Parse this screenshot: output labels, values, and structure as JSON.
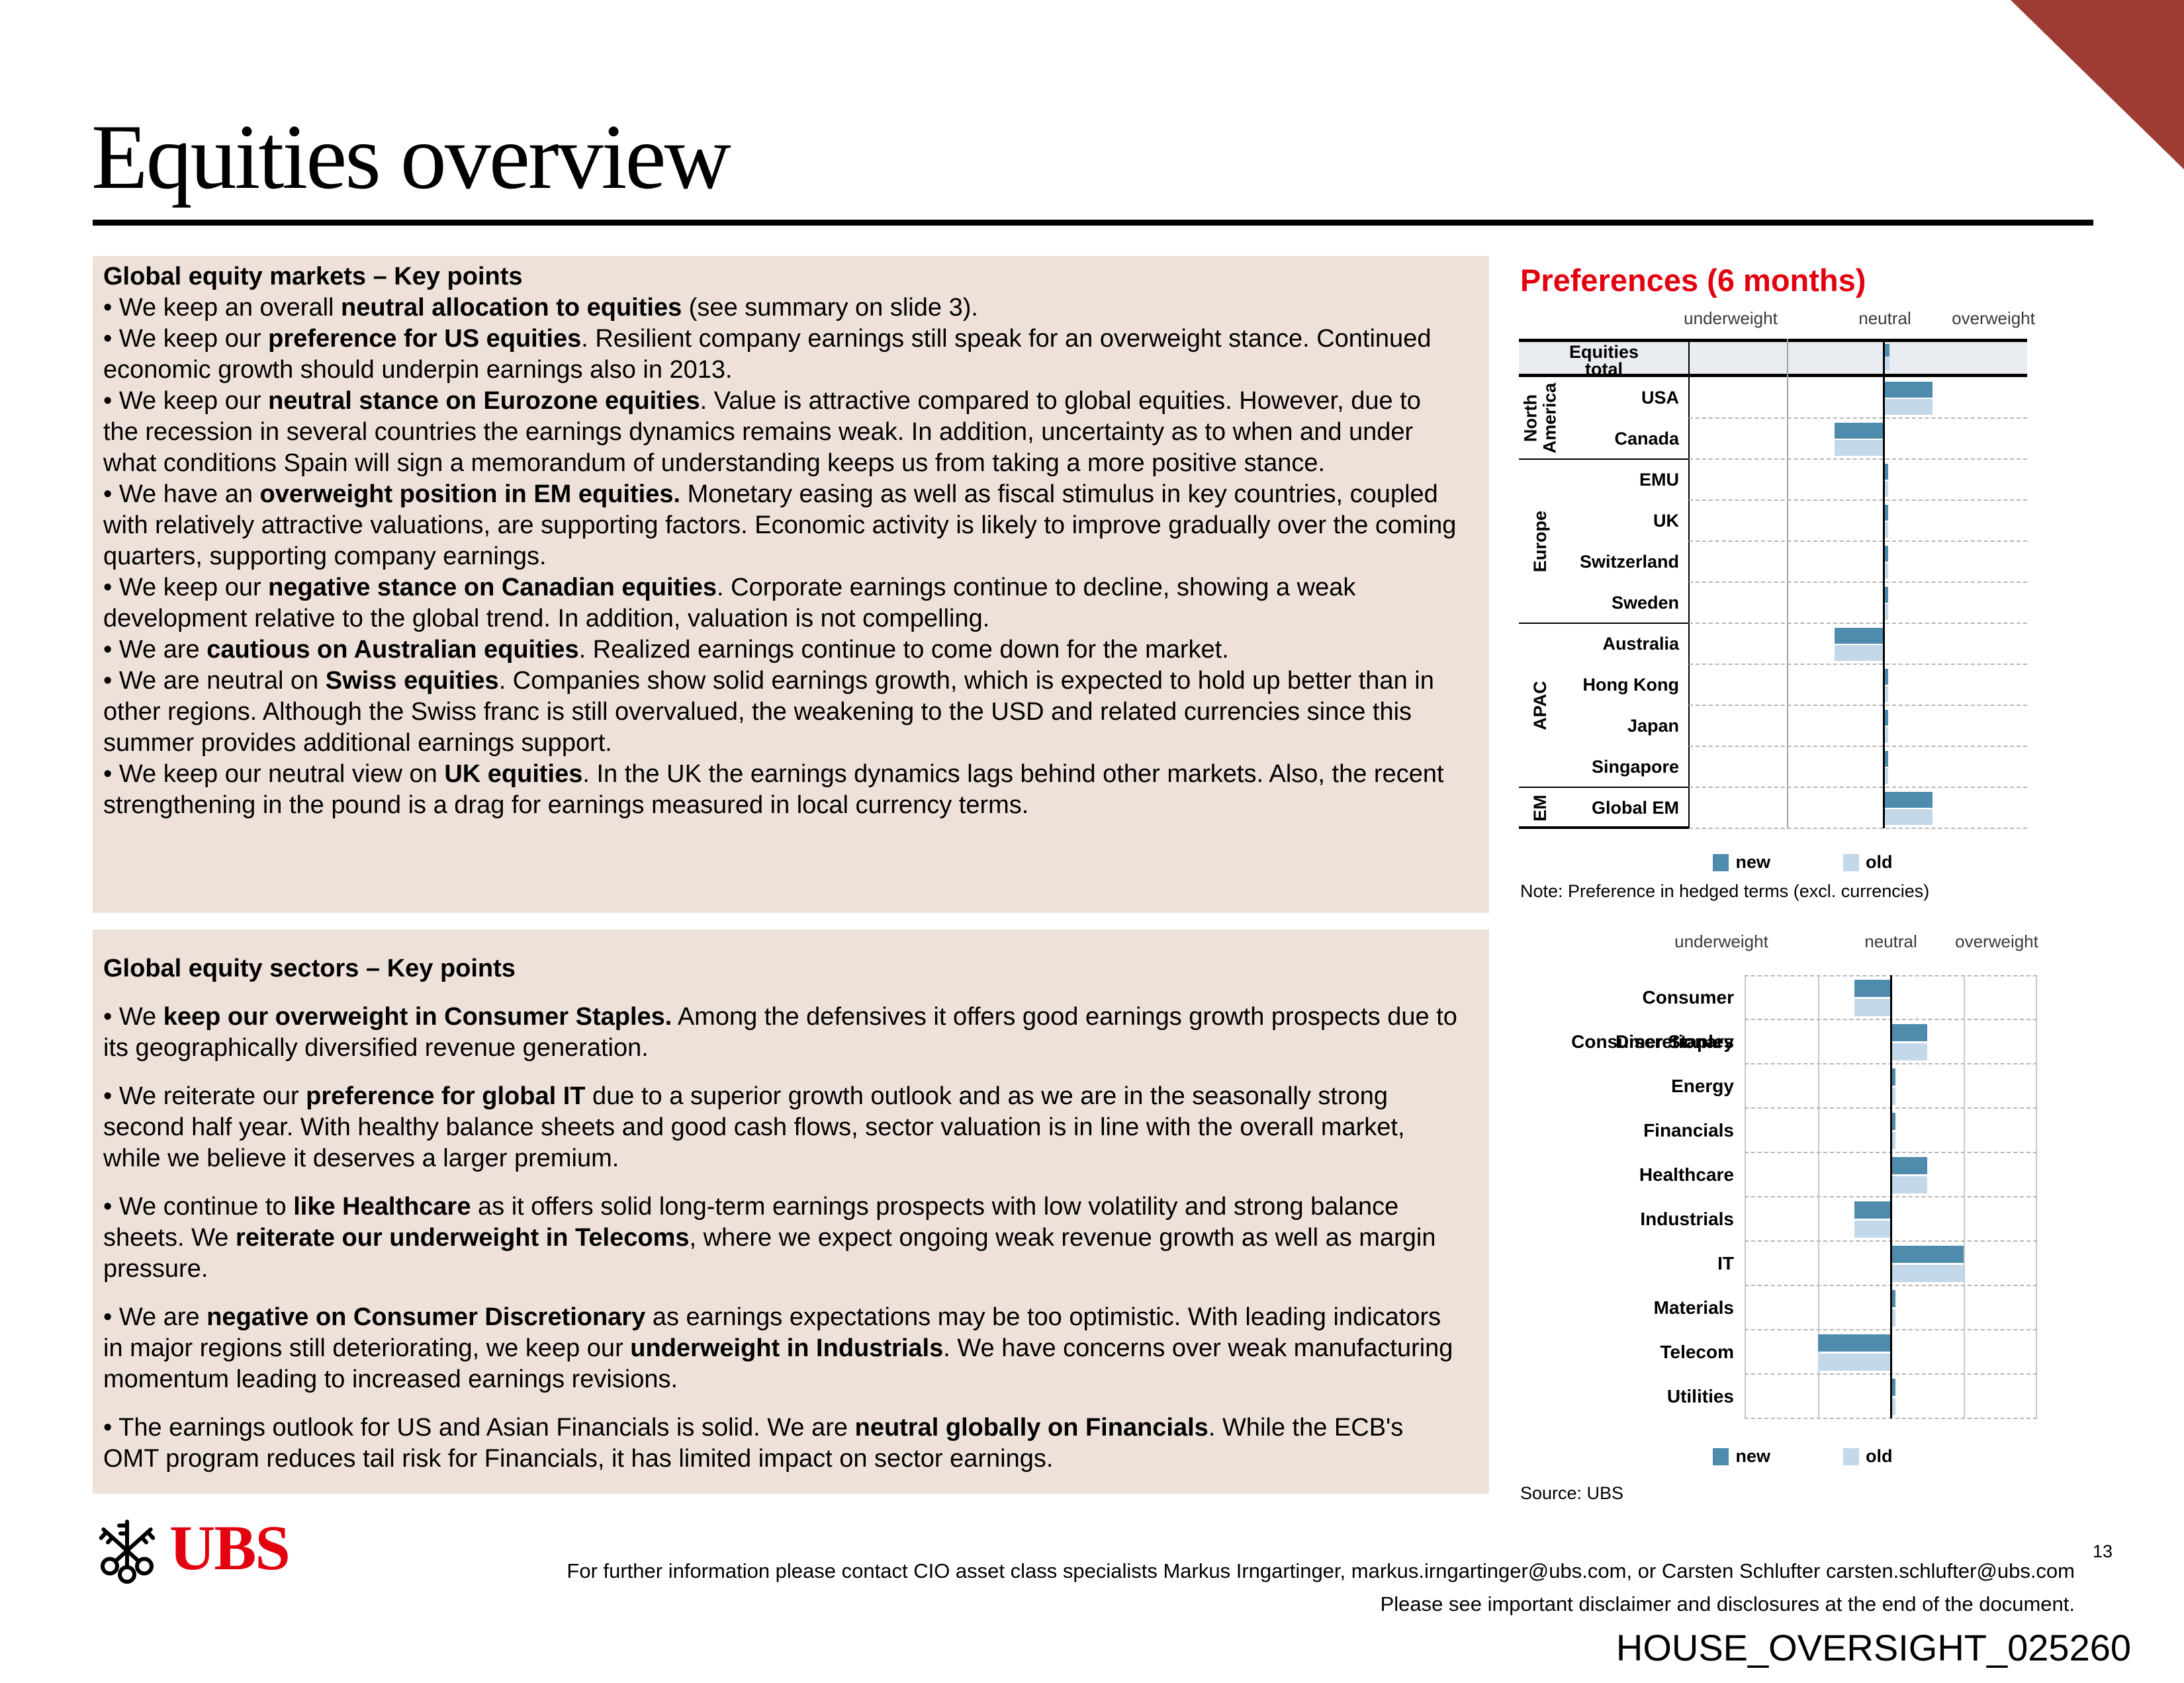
{
  "page": {
    "title": "Equities overview",
    "logo_text": "UBS",
    "footer_line1": "For further information please contact CIO asset class specialists Markus Irngartinger, markus.irngartinger@ubs.com, or Carsten Schlufter carsten.schlufter@ubs.com",
    "footer_line2": "Please see important disclaimer and disclosures at the end of the document.",
    "page_number": "13",
    "watermark": "HOUSE_OVERSIGHT_025260"
  },
  "colors": {
    "accent_red": "#e3000f",
    "corner_red": "#9e3b33",
    "pink_box": "#eee1da",
    "band_grey": "#e9ecf1",
    "bar_new": "#4e8bad",
    "bar_old": "#c3d8e9",
    "dash_grey": "#b5b5b5",
    "grid_grey": "#9aa4ad",
    "grid_light": "#c4c8cc"
  },
  "markets_box": {
    "heading": "Global equity markets – Key points",
    "bullets": [
      [
        {
          "t": "• We keep an overall "
        },
        {
          "t": "neutral allocation to equities",
          "b": true
        },
        {
          "t": " (see summary on slide 3)."
        }
      ],
      [
        {
          "t": "• We keep our "
        },
        {
          "t": "preference for US equities",
          "b": true
        },
        {
          "t": ". Resilient company earnings still speak for an overweight stance. Continued economic growth should underpin earnings also in 2013."
        }
      ],
      [
        {
          "t": "• We keep our "
        },
        {
          "t": "neutral stance on Eurozone equities",
          "b": true
        },
        {
          "t": ". Value is attractive compared to global equities. However, due to the recession in several countries the earnings dynamics remains weak. In addition, uncertainty as to when and under what conditions Spain will sign a memorandum of understanding keeps us from taking a more positive stance."
        }
      ],
      [
        {
          "t": "• We have an "
        },
        {
          "t": "overweight position in EM equities.",
          "b": true
        },
        {
          "t": " Monetary easing as well as fiscal stimulus in key countries, coupled with relatively attractive valuations, are supporting factors. Economic activity is likely to improve gradually over the coming quarters, supporting company earnings."
        }
      ],
      [
        {
          "t": "• We keep our "
        },
        {
          "t": "negative stance on Canadian equities",
          "b": true
        },
        {
          "t": ". Corporate earnings continue to decline, showing a weak development relative to the global trend. In addition, valuation is not compelling."
        }
      ],
      [
        {
          "t": "• We are "
        },
        {
          "t": "cautious on Australian equities",
          "b": true
        },
        {
          "t": ". Realized earnings continue to come down for the market."
        }
      ],
      [
        {
          "t": "• We are neutral on "
        },
        {
          "t": "Swiss equities",
          "b": true
        },
        {
          "t": ". Companies show solid earnings growth, which is expected to hold up better than in other regions. Although the Swiss franc is still overvalued, the weakening to the USD and related currencies since this summer provides additional earnings support."
        }
      ],
      [
        {
          "t": "• We keep our neutral view on "
        },
        {
          "t": "UK equities",
          "b": true
        },
        {
          "t": ". In the UK the earnings dynamics lags behind other markets. Also, the recent strengthening in the pound is a drag for earnings measured in local currency terms."
        }
      ]
    ]
  },
  "sectors_box": {
    "heading": "Global equity sectors – Key points",
    "bullets": [
      [
        {
          "t": "• We "
        },
        {
          "t": "keep our overweight in Consumer Staples.",
          "b": true
        },
        {
          "t": " Among the defensives it offers good earnings growth prospects due to its geographically diversified revenue generation."
        }
      ],
      [
        {
          "t": "• We reiterate our "
        },
        {
          "t": "preference for global IT",
          "b": true
        },
        {
          "t": " due to a superior growth outlook and as we are in the seasonally strong second half year. With healthy balance sheets and good cash flows, sector valuation is in line with the overall market, while we believe it deserves a larger premium."
        }
      ],
      [
        {
          "t": "• We continue to "
        },
        {
          "t": "like Healthcare",
          "b": true
        },
        {
          "t": " as it offers solid long-term earnings prospects with low volatility and strong balance sheets. We "
        },
        {
          "t": "reiterate our underweight in Telecoms",
          "b": true
        },
        {
          "t": ", where we expect ongoing weak revenue growth as well as margin pressure."
        }
      ],
      [
        {
          "t": "• We are "
        },
        {
          "t": "negative on Consumer Discretionary",
          "b": true
        },
        {
          "t": " as earnings expectations may be too optimistic. With leading indicators in major regions still deteriorating, we keep our "
        },
        {
          "t": "underweight in Industrials",
          "b": true
        },
        {
          "t": ". We have concerns over weak manufacturing momentum leading to increased earnings revisions."
        }
      ],
      [
        {
          "t": "•  The earnings outlook for US and Asian Financials is solid. We are "
        },
        {
          "t": "neutral globally on Financials",
          "b": true
        },
        {
          "t": ". While the ECB's OMT program reduces tail risk for Financials, it has limited impact on sector earnings."
        }
      ]
    ]
  },
  "chart_data": [
    {
      "type": "bar",
      "orientation": "horizontal-diverging",
      "title": "Preferences (6 months)",
      "axis_labels": [
        "underweight",
        "neutral",
        "overweight"
      ],
      "xlim": [
        -2,
        2
      ],
      "unit_note": "values in grid-column units relative to neutral=0",
      "header_row": {
        "label": "Equities total",
        "new": 0.06,
        "old": 0.06
      },
      "groups": [
        {
          "name": "North America",
          "rows": [
            {
              "label": "USA",
              "new": 0.5,
              "old": 0.5
            },
            {
              "label": "Canada",
              "new": -0.5,
              "old": -0.5
            }
          ]
        },
        {
          "name": "Europe",
          "rows": [
            {
              "label": "EMU",
              "new": 0.05,
              "old": 0.05
            },
            {
              "label": "UK",
              "new": 0.05,
              "old": 0.05
            },
            {
              "label": "Switzerland",
              "new": 0.05,
              "old": 0.05
            },
            {
              "label": "Sweden",
              "new": 0.05,
              "old": 0.05
            }
          ]
        },
        {
          "name": "APAC",
          "rows": [
            {
              "label": "Australia",
              "new": -0.5,
              "old": -0.5
            },
            {
              "label": "Hong Kong",
              "new": 0.05,
              "old": 0.05
            },
            {
              "label": "Japan",
              "new": 0.05,
              "old": 0.05
            },
            {
              "label": "Singapore",
              "new": 0.05,
              "old": 0.05
            }
          ]
        },
        {
          "name": "EM",
          "rows": [
            {
              "label": "Global EM",
              "new": 0.5,
              "old": 0.5
            }
          ]
        }
      ],
      "legend": [
        "new",
        "old"
      ],
      "legend_position": "bottom",
      "note": "Note: Preference in hedged terms (excl. currencies)"
    },
    {
      "type": "bar",
      "orientation": "horizontal-diverging",
      "axis_labels": [
        "underweight",
        "neutral",
        "overweight"
      ],
      "xlim": [
        -2,
        2
      ],
      "rows": [
        {
          "label": "Consumer Discretionary",
          "new": -0.5,
          "old": -0.5
        },
        {
          "label": "Consumer Staples",
          "new": 0.5,
          "old": 0.5
        },
        {
          "label": "Energy",
          "new": 0.06,
          "old": 0.06
        },
        {
          "label": "Financials",
          "new": 0.06,
          "old": 0.06
        },
        {
          "label": "Healthcare",
          "new": 0.5,
          "old": 0.5
        },
        {
          "label": "Industrials",
          "new": -0.5,
          "old": -0.5
        },
        {
          "label": "IT",
          "new": 1.0,
          "old": 1.0
        },
        {
          "label": "Materials",
          "new": 0.06,
          "old": 0.06
        },
        {
          "label": "Telecom",
          "new": -1.0,
          "old": -1.0
        },
        {
          "label": "Utilities",
          "new": 0.06,
          "old": 0.06
        }
      ],
      "legend": [
        "new",
        "old"
      ],
      "legend_position": "bottom",
      "source": "Source: UBS"
    }
  ]
}
